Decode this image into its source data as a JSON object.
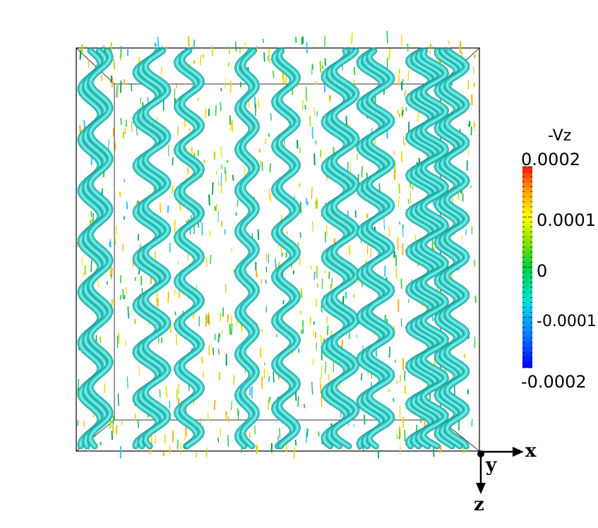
{
  "colorbar": {
    "title": "-Vz",
    "ticks": {
      "max": "0.0002",
      "upper": "0.0001",
      "zero": "0",
      "lower": "-0.0001",
      "min": "-0.0002"
    },
    "range": [
      -0.0002,
      0.0002
    ],
    "colormap": [
      "#0000ff",
      "#00c8ff",
      "#00e070",
      "#40e000",
      "#ffff00",
      "#ffa000",
      "#ff2000"
    ]
  },
  "axes": {
    "x": "x",
    "y": "y",
    "z": "z"
  },
  "colors": {
    "vortex": "#3ad6cf",
    "vortex_shade": "#1e9a95",
    "vortex_light": "#8ff0ea"
  }
}
